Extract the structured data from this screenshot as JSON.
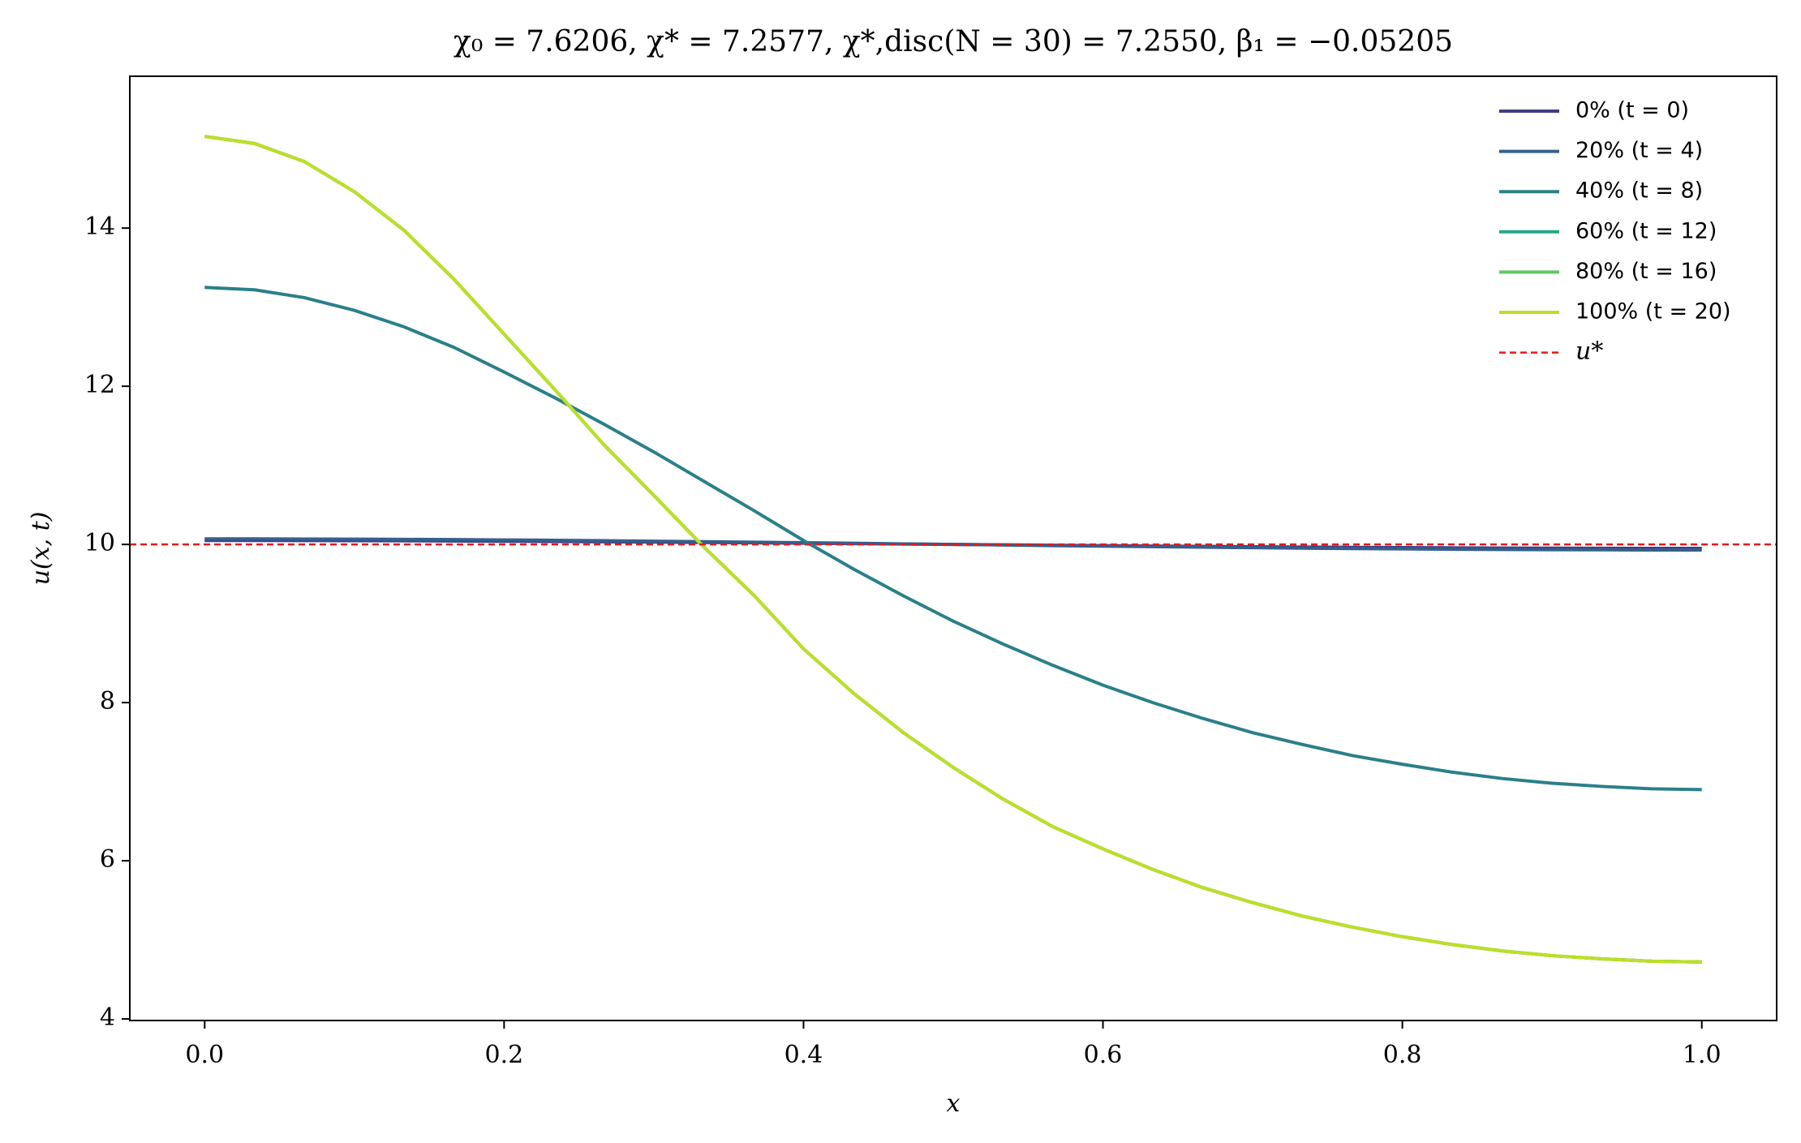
{
  "chart_data": {
    "type": "line",
    "title": "χ₀ = 7.6206,  χ* = 7.2577,  χ*,disc(N = 30) = 7.2550,  β₁ = −0.05205",
    "x_label": "x",
    "y_label": "u(x, t)",
    "x": [
      0,
      0.0333,
      0.0667,
      0.1,
      0.1333,
      0.1667,
      0.2,
      0.2333,
      0.2667,
      0.3,
      0.3333,
      0.3667,
      0.4,
      0.4333,
      0.4667,
      0.5,
      0.5333,
      0.5667,
      0.6,
      0.6333,
      0.6667,
      0.7,
      0.7333,
      0.7667,
      0.8,
      0.8333,
      0.8667,
      0.9,
      0.9333,
      0.9667,
      1
    ],
    "series": [
      {
        "name": "0% (t = 0)",
        "color": "#3f3d84",
        "values": [
          10.05,
          10.05,
          10.049,
          10.048,
          10.046,
          10.043,
          10.04,
          10.037,
          10.033,
          10.029,
          10.025,
          10.02,
          10.015,
          10.01,
          10.005,
          10.0,
          9.995,
          9.99,
          9.985,
          9.98,
          9.975,
          9.971,
          9.967,
          9.963,
          9.96,
          9.957,
          9.954,
          9.952,
          9.951,
          9.95,
          9.95
        ]
      },
      {
        "name": "20% (t = 4)",
        "color": "#355f8d",
        "values": [
          10.07,
          10.07,
          10.068,
          10.067,
          10.064,
          10.061,
          10.057,
          10.052,
          10.047,
          10.041,
          10.035,
          10.028,
          10.022,
          10.015,
          10.007,
          10.0,
          9.993,
          9.985,
          9.978,
          9.972,
          9.965,
          9.959,
          9.953,
          9.948,
          9.943,
          9.939,
          9.936,
          9.933,
          9.932,
          9.93,
          9.93
        ]
      },
      {
        "name": "40% (t = 8)",
        "color": "#2a8089",
        "values": [
          13.25,
          13.22,
          13.12,
          12.96,
          12.75,
          12.49,
          12.18,
          11.86,
          11.52,
          11.17,
          10.8,
          10.43,
          10.05,
          9.69,
          9.35,
          9.03,
          8.74,
          8.47,
          8.22,
          8.0,
          7.8,
          7.62,
          7.47,
          7.33,
          7.22,
          7.12,
          7.04,
          6.98,
          6.94,
          6.91,
          6.9
        ]
      },
      {
        "name": "60% (t = 12)",
        "color": "#22a884",
        "values": [
          15.16,
          15.07,
          14.84,
          14.46,
          13.97,
          13.35,
          12.66,
          11.97,
          11.26,
          10.62,
          9.97,
          9.36,
          8.68,
          8.12,
          7.62,
          7.18,
          6.78,
          6.43,
          6.15,
          5.89,
          5.66,
          5.47,
          5.3,
          5.16,
          5.04,
          4.94,
          4.86,
          4.8,
          4.76,
          4.73,
          4.72
        ]
      },
      {
        "name": "80% (t = 16)",
        "color": "#5ec962",
        "values": [
          15.16,
          15.07,
          14.84,
          14.46,
          13.97,
          13.35,
          12.66,
          11.97,
          11.26,
          10.62,
          9.97,
          9.36,
          8.68,
          8.12,
          7.62,
          7.18,
          6.78,
          6.43,
          6.15,
          5.89,
          5.66,
          5.47,
          5.3,
          5.16,
          5.04,
          4.94,
          4.86,
          4.8,
          4.76,
          4.73,
          4.72
        ]
      },
      {
        "name": "100% (t = 20)",
        "color": "#bddf26",
        "values": [
          15.16,
          15.07,
          14.84,
          14.46,
          13.97,
          13.35,
          12.66,
          11.97,
          11.26,
          10.62,
          9.97,
          9.36,
          8.68,
          8.12,
          7.62,
          7.18,
          6.78,
          6.43,
          6.15,
          5.89,
          5.66,
          5.47,
          5.3,
          5.16,
          5.04,
          4.94,
          4.86,
          4.8,
          4.76,
          4.73,
          4.72
        ]
      }
    ],
    "hline": {
      "name": "u*",
      "value": 10,
      "color": "#e41a1c"
    },
    "xlim": [
      -0.05,
      1.05
    ],
    "ylim": [
      3.98,
      15.92
    ],
    "xticks": [
      {
        "value": 0,
        "label": "0.0"
      },
      0.2,
      0.4,
      0.6,
      0.8,
      {
        "value": 1,
        "label": "1.0"
      }
    ],
    "yticks": [
      4,
      6,
      8,
      10,
      12,
      14
    ],
    "legend": "upper right"
  }
}
